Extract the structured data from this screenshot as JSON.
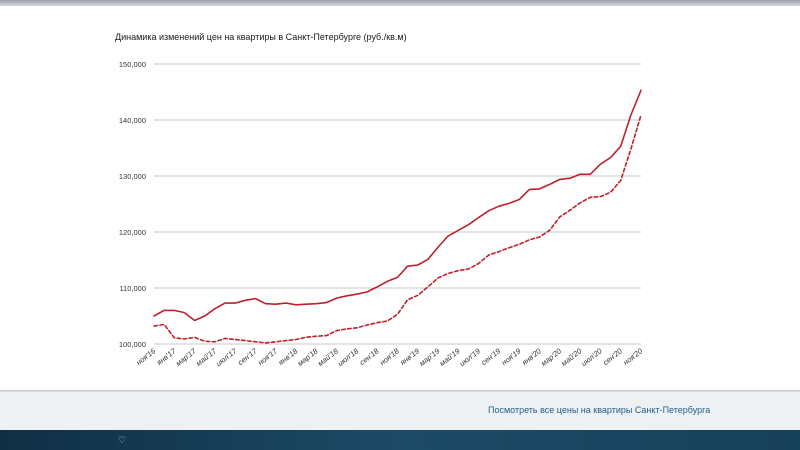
{
  "chart_data": {
    "type": "line",
    "title": "Динамика изменений цен на квартиры в Санкт-Петербурге (руб./кв.м)",
    "xlabel": "",
    "ylabel": "",
    "ylim": [
      100000,
      150000
    ],
    "yticks": [
      "100,000",
      "110,000",
      "120,000",
      "130,000",
      "140,000",
      "150,000"
    ],
    "ytick_values": [
      100000,
      110000,
      120000,
      130000,
      140000,
      150000
    ],
    "xticks": [
      "ноя'16",
      "янв'17",
      "мар'17",
      "май'17",
      "июл'17",
      "сен'17",
      "ноя'17",
      "янв'18",
      "мар'18",
      "май'18",
      "июл'18",
      "сен'18",
      "ноя'18",
      "янв'19",
      "мар'19",
      "май'19",
      "июл'19",
      "сен'19",
      "ноя'19",
      "янв'20",
      "мар'20",
      "май'20",
      "июл'20",
      "сен'20",
      "ноя'20"
    ],
    "x": [
      "ноя'16",
      "дек'16",
      "янв'17",
      "фев'17",
      "мар'17",
      "апр'17",
      "май'17",
      "июн'17",
      "июл'17",
      "авг'17",
      "сен'17",
      "окт'17",
      "ноя'17",
      "дек'17",
      "янв'18",
      "фев'18",
      "мар'18",
      "апр'18",
      "май'18",
      "июн'18",
      "июл'18",
      "авг'18",
      "сен'18",
      "окт'18",
      "ноя'18",
      "дек'18",
      "янв'19",
      "фев'19",
      "мар'19",
      "апр'19",
      "май'19",
      "июн'19",
      "июл'19",
      "авг'19",
      "сен'19",
      "окт'19",
      "ноя'19",
      "дек'19",
      "янв'20",
      "фев'20",
      "мар'20",
      "апр'20",
      "май'20",
      "июн'20",
      "июл'20",
      "авг'20",
      "сен'20",
      "окт'20",
      "ноя'20"
    ],
    "grid": true,
    "legend": "none",
    "series": [
      {
        "style": "solid",
        "color": "#c0202a",
        "values": [
          105000,
          106000,
          106000,
          105600,
          104200,
          105000,
          106300,
          107300,
          107300,
          107800,
          108100,
          107200,
          107100,
          107300,
          107000,
          107100,
          107200,
          107400,
          108200,
          108600,
          108900,
          109300,
          110200,
          111200,
          111900,
          113900,
          114100,
          115100,
          117300,
          119300,
          120300,
          121300,
          122600,
          123800,
          124600,
          125100,
          125800,
          127600,
          127700,
          128500,
          129400,
          129600,
          130300,
          130300,
          132100,
          133300,
          135300,
          140900,
          145300
        ]
      },
      {
        "style": "dashed",
        "color": "#c0202a",
        "values": [
          103200,
          103500,
          101100,
          100900,
          101200,
          100500,
          100400,
          101000,
          100800,
          100600,
          100400,
          100200,
          100400,
          100600,
          100800,
          101200,
          101400,
          101500,
          102400,
          102700,
          102900,
          103400,
          103800,
          104100,
          105300,
          107900,
          108700,
          110200,
          111800,
          112600,
          113100,
          113400,
          114400,
          115900,
          116500,
          117200,
          117800,
          118600,
          119100,
          120300,
          122700,
          123900,
          125200,
          126200,
          126300,
          127100,
          129200,
          134800,
          140900
        ]
      }
    ]
  },
  "footer": {
    "link_text": "Посмотреть все цены на квартиры Санкт-Петербурга"
  }
}
